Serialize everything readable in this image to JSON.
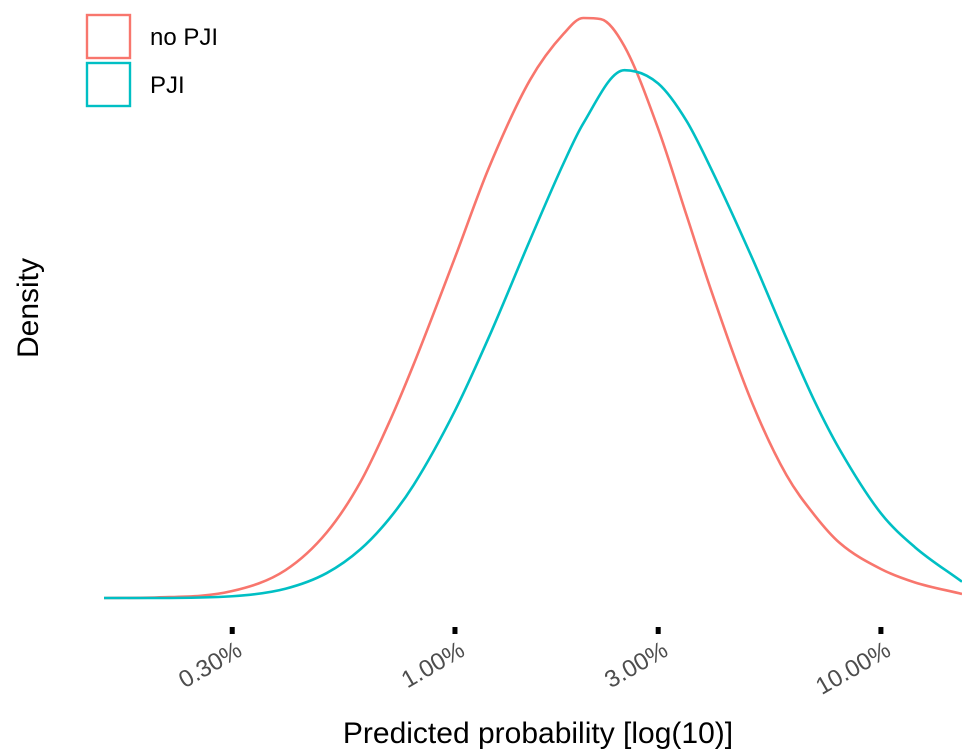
{
  "chart_data": {
    "type": "line",
    "title": "",
    "xlabel": "Predicted probability [log(10)]",
    "ylabel": "Density",
    "x_scale": "log10",
    "x_ticks": [
      0.3,
      1,
      3,
      10
    ],
    "x_tick_labels": [
      "0.30%",
      "1.00%",
      "3.00%",
      "10.00%"
    ],
    "xlim": [
      0.15,
      15.5
    ],
    "ylim": [
      0,
      1.0
    ],
    "y_ticks_shown": false,
    "grid": false,
    "legend_position": "top-left",
    "series": [
      {
        "name": "no PJI",
        "color": "#F8766D",
        "x": [
          0.15,
          0.2,
          0.3,
          0.4,
          0.5,
          0.6,
          0.7,
          0.8,
          1.0,
          1.2,
          1.5,
          1.8,
          2.0,
          2.2,
          2.5,
          3.0,
          3.5,
          4.0,
          5.0,
          6.0,
          7.0,
          8.0,
          10.0,
          12.0,
          15.5
        ],
        "y": [
          0.0,
          0.001,
          0.012,
          0.048,
          0.113,
          0.2,
          0.302,
          0.403,
          0.587,
          0.741,
          0.893,
          0.973,
          1.0,
          0.998,
          0.951,
          0.809,
          0.659,
          0.529,
          0.334,
          0.212,
          0.142,
          0.095,
          0.05,
          0.027,
          0.007
        ]
      },
      {
        "name": "PJI",
        "color": "#00BFC4",
        "x": [
          0.15,
          0.2,
          0.3,
          0.4,
          0.5,
          0.6,
          0.7,
          0.8,
          1.0,
          1.2,
          1.5,
          1.8,
          2.0,
          2.5,
          3.0,
          3.5,
          4.0,
          5.0,
          6.0,
          7.0,
          8.0,
          10.0,
          12.0,
          15.5
        ],
        "y": [
          0.0,
          0.0,
          0.003,
          0.016,
          0.043,
          0.084,
          0.136,
          0.195,
          0.323,
          0.449,
          0.617,
          0.75,
          0.818,
          0.91,
          0.887,
          0.822,
          0.739,
          0.584,
          0.448,
          0.338,
          0.256,
          0.146,
          0.088,
          0.028
        ]
      }
    ]
  }
}
